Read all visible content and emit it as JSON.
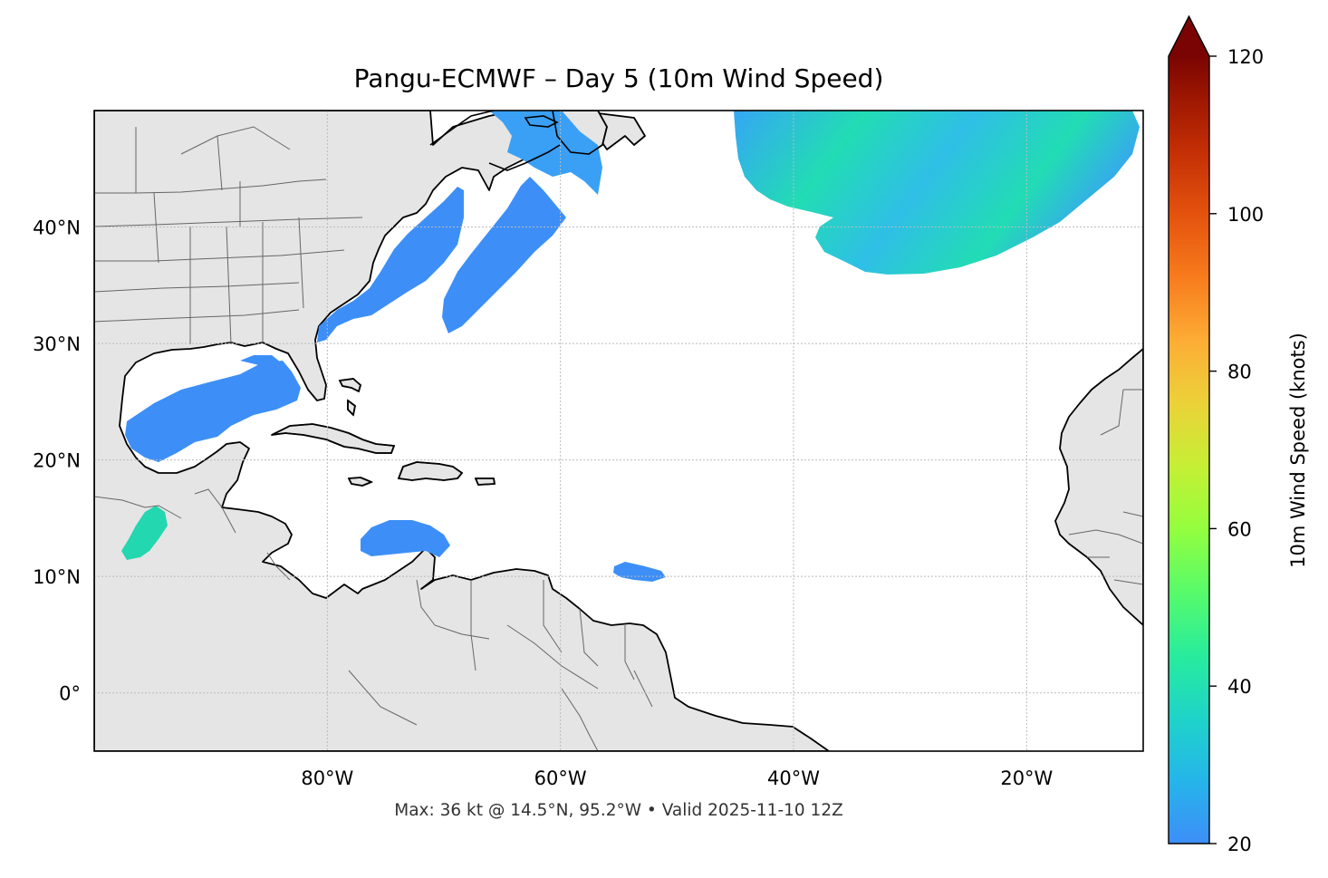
{
  "title": "Pangu-ECMWF – Day 5 (10m Wind Speed)",
  "footer": "Max: 36 kt @ 14.5°N, 95.2°W • Valid 2025-11-10 12Z",
  "map": {
    "projection": "PlateCarree",
    "lon_range": [
      -100,
      -10
    ],
    "lat_range": [
      -5,
      50
    ],
    "lon_ticks": [
      {
        "value": -80,
        "label": "80°W"
      },
      {
        "value": -60,
        "label": "60°W"
      },
      {
        "value": -40,
        "label": "40°W"
      },
      {
        "value": -20,
        "label": "20°W"
      }
    ],
    "lat_ticks": [
      {
        "value": 40,
        "label": "40°N"
      },
      {
        "value": 30,
        "label": "30°N"
      },
      {
        "value": 20,
        "label": "20°N"
      },
      {
        "value": 10,
        "label": "10°N"
      },
      {
        "value": 0,
        "label": "0°"
      }
    ],
    "gridlines": true,
    "land_color": "#e5e5e5",
    "coast_color": "#000000",
    "border_color": "#555555"
  },
  "colorbar": {
    "label": "10m Wind Speed (knots)",
    "min": 20,
    "max": 120,
    "extend": "max",
    "ticks": [
      {
        "value": 20,
        "label": "20"
      },
      {
        "value": 40,
        "label": "40"
      },
      {
        "value": 60,
        "label": "60"
      },
      {
        "value": 80,
        "label": "80"
      },
      {
        "value": 100,
        "label": "100"
      },
      {
        "value": 120,
        "label": "120"
      }
    ],
    "colormap": "turbo",
    "extend_color": "#7a0403"
  },
  "wind_regions": [
    {
      "name": "gulf-of-mexico",
      "peak_kt": 27,
      "color": "#3d8ff7"
    },
    {
      "name": "us-east-coast",
      "peak_kt": 24,
      "color": "#3d8ff7"
    },
    {
      "name": "offshore-band",
      "peak_kt": 24,
      "color": "#3d8ff7"
    },
    {
      "name": "gulf-of-st-lawrence",
      "peak_kt": 26,
      "color": "#3aa0f5"
    },
    {
      "name": "north-atlantic-low",
      "peak_kt": 32,
      "color": "#2ad7c8"
    },
    {
      "name": "caribbean-colombia",
      "peak_kt": 24,
      "color": "#3d8ff7"
    },
    {
      "name": "atlantic-itcz",
      "peak_kt": 22,
      "color": "#3d8ff7"
    },
    {
      "name": "tehuantepec",
      "peak_kt": 36,
      "color": "#23d7b0"
    }
  ]
}
